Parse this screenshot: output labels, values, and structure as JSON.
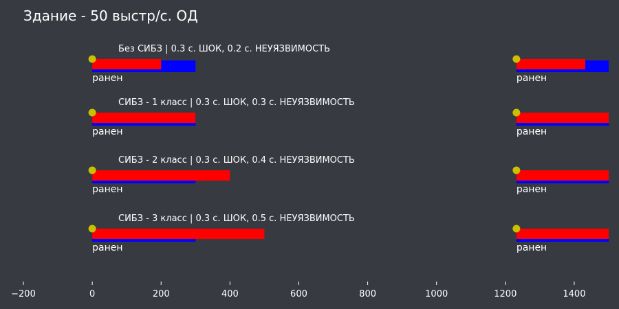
{
  "chart_data": {
    "type": "bar",
    "title": "Здание - 50 выстр/с. ОД",
    "xlim": [
      -200,
      1500
    ],
    "xticks": [
      -200,
      0,
      200,
      400,
      600,
      800,
      1000,
      1200,
      1400
    ],
    "colors": {
      "background": "#373a41",
      "stun_bar": "#0000ff",
      "invuln_bar": "#ff0000",
      "hit_marker": "#c8c000",
      "text": "#ffffff"
    },
    "rows": [
      {
        "label": "Без СИБЗ | 0.3 с. ШОК, 0.2 с. НЕУЯЗВИМОСТЬ",
        "events": [
          {
            "hit": 0,
            "stun_end": 300,
            "invuln_end": 200,
            "status": "ранен"
          },
          {
            "hit": 1232,
            "stun_end": 1532,
            "invuln_end": 1432,
            "status": "ранен"
          }
        ]
      },
      {
        "label": "СИБЗ - 1 класс | 0.3 с. ШОК, 0.3 с. НЕУЯЗВИМОСТЬ",
        "events": [
          {
            "hit": 0,
            "stun_end": 300,
            "invuln_end": 300,
            "status": "ранен"
          },
          {
            "hit": 1232,
            "stun_end": 1532,
            "invuln_end": 1532,
            "status": "ранен"
          }
        ]
      },
      {
        "label": "СИБЗ - 2 класс | 0.3 с. ШОК, 0.4 с. НЕУЯЗВИМОСТЬ",
        "events": [
          {
            "hit": 0,
            "stun_end": 300,
            "invuln_end": 400,
            "status": "ранен"
          },
          {
            "hit": 1232,
            "stun_end": 1532,
            "invuln_end": 1632,
            "status": "ранен"
          }
        ]
      },
      {
        "label": "СИБЗ - 3 класс | 0.3 с. ШОК, 0.5 с. НЕУЯЗВИМОСТЬ",
        "events": [
          {
            "hit": 0,
            "stun_end": 300,
            "invuln_end": 500,
            "status": "ранен"
          },
          {
            "hit": 1232,
            "stun_end": 1532,
            "invuln_end": 1732,
            "status": "ранен"
          }
        ]
      }
    ]
  }
}
